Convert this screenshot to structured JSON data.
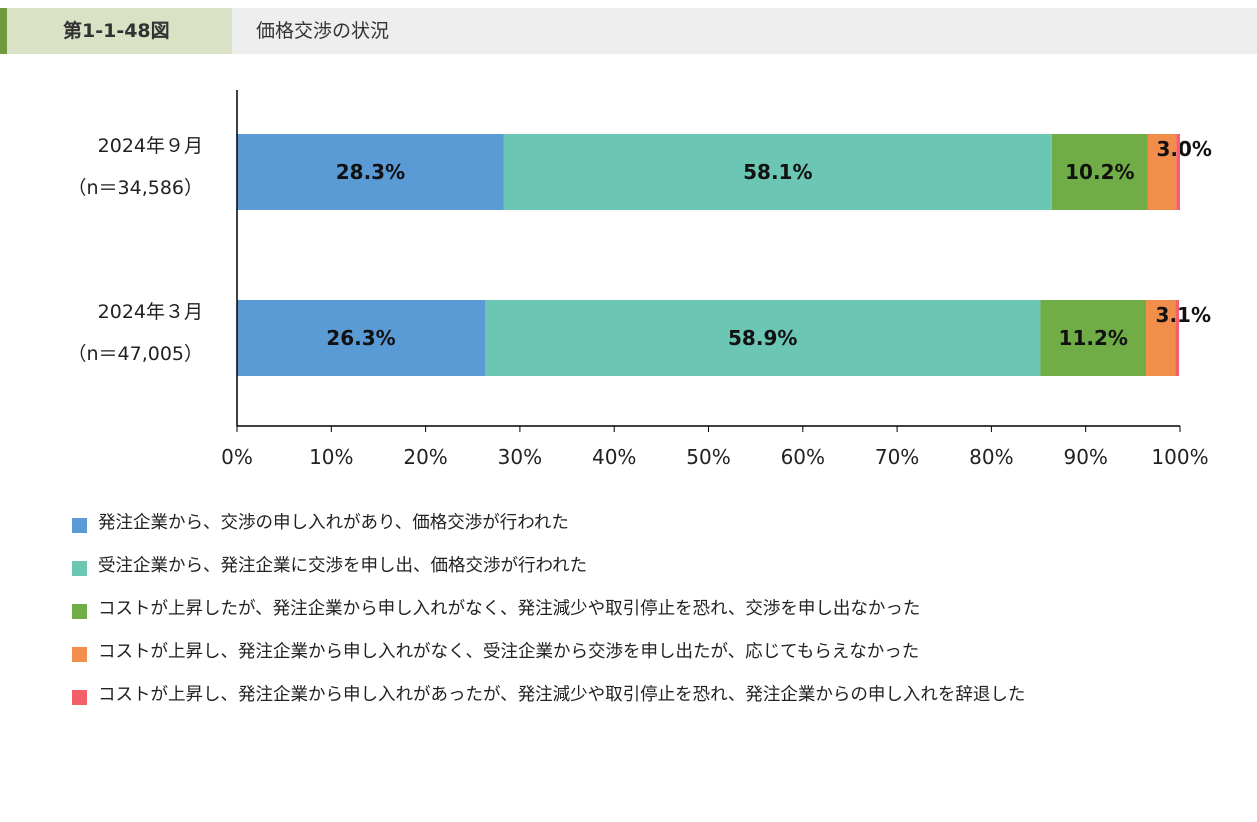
{
  "header": {
    "figure_number": "第1-1-48図",
    "title": "価格交渉の状況"
  },
  "chart_data": {
    "type": "bar",
    "orientation": "horizontal",
    "stacked": true,
    "categories": [
      {
        "line1": "2024年９月",
        "line2": "（n＝34,586）"
      },
      {
        "line1": "2024年３月",
        "line2": "（n＝47,005）"
      }
    ],
    "series": [
      {
        "name": "発注企業から、交渉の申し入れがあり、価格交渉が行われた",
        "color": "#5b9bd5",
        "values": [
          28.3,
          26.3
        ],
        "labels": [
          "28.3%",
          "26.3%"
        ]
      },
      {
        "name": "受注企業から、発注企業に交渉を申し出、価格交渉が行われた",
        "color": "#6cc6b4",
        "values": [
          58.1,
          58.9
        ],
        "labels": [
          "58.1%",
          "58.9%"
        ]
      },
      {
        "name": "コストが上昇したが、発注企業から申し入れがなく、発注減少や取引停止を恐れ、交渉を申し出なかった",
        "color": "#70ad47",
        "values": [
          10.2,
          11.2
        ],
        "labels": [
          "10.2%",
          "11.2%"
        ]
      },
      {
        "name": "コストが上昇し、発注企業から申し入れがなく、受注企業から交渉を申し出たが、応じてもらえなかった",
        "color": "#f28e4b",
        "values": [
          3.0,
          3.1
        ],
        "labels": [
          "3.0%",
          "3.1%"
        ]
      },
      {
        "name": "コストが上昇し、発注企業から申し入れがあったが、発注減少や取引停止を恐れ、発注企業からの申し入れを辞退した",
        "color": "#f4606a",
        "values": [
          0.4,
          0.4
        ],
        "labels": [
          "",
          ""
        ]
      }
    ],
    "xlim": [
      0,
      100
    ],
    "x_ticks": [
      "0%",
      "10%",
      "20%",
      "30%",
      "40%",
      "50%",
      "60%",
      "70%",
      "80%",
      "90%",
      "100%"
    ],
    "legend_position": "bottom"
  }
}
